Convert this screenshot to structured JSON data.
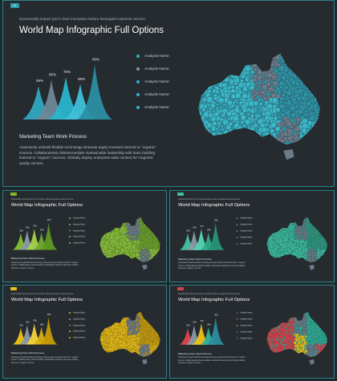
{
  "slides": [
    {
      "badge": "01",
      "subtitle": "Dynamically impact just in time innovation before leveraged customer service.",
      "title": "World Map Infographic Full Options",
      "peaks": [
        "55%",
        "65%",
        "70%",
        "58%",
        "90%"
      ],
      "peak_values": [
        55,
        65,
        70,
        58,
        90
      ],
      "legend": [
        "Analysis Name",
        "Analysis Name",
        "Analysis Name",
        "Analysis Name",
        "Analysis Name"
      ],
      "section_title": "Marketing Team Work Process",
      "description": "Assertively unleash flexible technology whereas equity invested internal or \"organic\" sources. Collaboratively disintermediate maintainable leadership with team building internal or \"organic\" sources. Globally deploy enterprise-wide content for magnetic quality vectors.",
      "colors": {
        "badge": "#2e9cb0",
        "peaks": [
          "#2ea8c0",
          "#6f8797",
          "#29b4cc",
          "#3fbfd9",
          "#2a8ea3"
        ],
        "map": "#3ab7c9",
        "map_shade": "#2e93a6",
        "accent_region": "#6b7b8a",
        "legend_dots": [
          "#2fb0c7",
          "#7f94a3",
          "#2fb0c7",
          "#2fb0c7",
          "#2fb0c7"
        ]
      }
    },
    {
      "badge": "",
      "subtitle": "Dynamically impact just in time innovation before leveraged customer service.",
      "title": "World Map Infographic Full Options",
      "peaks": [
        "55%",
        "65%",
        "70%",
        "58%",
        "90%"
      ],
      "peak_values": [
        55,
        65,
        70,
        58,
        90
      ],
      "legend": [
        "Analysis Name",
        "Analysis Name",
        "Analysis Name",
        "Analysis Name",
        "Analysis Name"
      ],
      "section_title": "Marketing Team Work Process",
      "description": "Assertively unleash flexible technology whereas equity invested internal or \"organic\" sources. Collaboratively disintermediate maintainable leadership with team building internal or \"organic\" sources.",
      "colors": {
        "badge": "#7dbb2e",
        "peaks": [
          "#86c233",
          "#8a9aa6",
          "#a7d24a",
          "#6fae2a",
          "#5f9a24"
        ],
        "map": "#8cc43a",
        "map_shade": "#6ea12b",
        "accent_region": "#6b7b8a",
        "legend_dots": [
          "#8cc43a",
          "#8a9aa6",
          "#8cc43a",
          "#8cc43a",
          "#8cc43a"
        ]
      }
    },
    {
      "badge": "",
      "subtitle": "Dynamically impact just in time innovation before leveraged customer service.",
      "title": "World Map Infographic Full Options",
      "peaks": [
        "55%",
        "65%",
        "70%",
        "58%",
        "90%"
      ],
      "peak_values": [
        55,
        65,
        70,
        58,
        90
      ],
      "legend": [
        "Analysis Name",
        "Analysis Name",
        "Analysis Name",
        "Analysis Name",
        "Analysis Name"
      ],
      "section_title": "Marketing Team Work Process",
      "description": "Assertively unleash flexible technology whereas equity invested internal or \"organic\" sources. Collaboratively disintermediate maintainable leadership with team building internal or \"organic\" sources.",
      "colors": {
        "badge": "#3cc3a2",
        "peaks": [
          "#3ec4a4",
          "#8a9aa6",
          "#55d4b4",
          "#2fa98b",
          "#279678"
        ],
        "map": "#3cbfa0",
        "map_shade": "#2f9a80",
        "accent_region": "#6b7b8a",
        "legend_dots": [
          "#3cbfa0",
          "#8a9aa6",
          "#3cbfa0",
          "#3cbfa0",
          "#3cbfa0"
        ]
      }
    },
    {
      "badge": "",
      "subtitle": "Dynamically impact just in time innovation before leveraged customer service.",
      "title": "World Map Infographic Full Options",
      "peaks": [
        "55%",
        "65%",
        "70%",
        "58%",
        "90%"
      ],
      "peak_values": [
        55,
        65,
        70,
        58,
        90
      ],
      "legend": [
        "Analysis Name",
        "Analysis Name",
        "Analysis Name",
        "Analysis Name",
        "Analysis Name"
      ],
      "section_title": "Marketing Team Work Process",
      "description": "Assertively unleash flexible technology whereas equity invested internal or \"organic\" sources. Collaboratively disintermediate maintainable leadership with team building internal or \"organic\" sources.",
      "colors": {
        "badge": "#e7c21e",
        "peaks": [
          "#f1c40f",
          "#8a9aa6",
          "#f4d23a",
          "#d9ad0c",
          "#c79b08"
        ],
        "map": "#e9bd14",
        "map_shade": "#c89e0c",
        "accent_region": "#6b7b8a",
        "legend_dots": [
          "#e9bd14",
          "#8a9aa6",
          "#e9bd14",
          "#e9bd14",
          "#e9bd14"
        ]
      }
    },
    {
      "badge": "",
      "subtitle": "Dynamically impact just in time innovation before leveraged customer service.",
      "title": "World Map Infographic Full Options",
      "peaks": [
        "55%",
        "65%",
        "70%",
        "58%",
        "90%"
      ],
      "peak_values": [
        55,
        65,
        70,
        58,
        90
      ],
      "legend": [
        "Analysis Name",
        "Analysis Name",
        "Analysis Name",
        "Analysis Name",
        "Analysis Name"
      ],
      "section_title": "Marketing Team Work Process",
      "description": "Assertively unleash flexible technology whereas equity invested internal or \"organic\" sources. Collaboratively disintermediate maintainable leadership with team building internal or \"organic\" sources.",
      "colors": {
        "badge": "#d9404a",
        "peaks": [
          "#e2434d",
          "#8a9aa6",
          "#f0c214",
          "#2fb29a",
          "#2a8f9f"
        ],
        "map": "#d8424c",
        "map_shade": "#2fae96",
        "accent_region": "#6b7b8a",
        "legend_dots": [
          "#e2434d",
          "#8a9aa6",
          "#f0c214",
          "#2fb29a",
          "#2a8f9f"
        ]
      }
    }
  ]
}
